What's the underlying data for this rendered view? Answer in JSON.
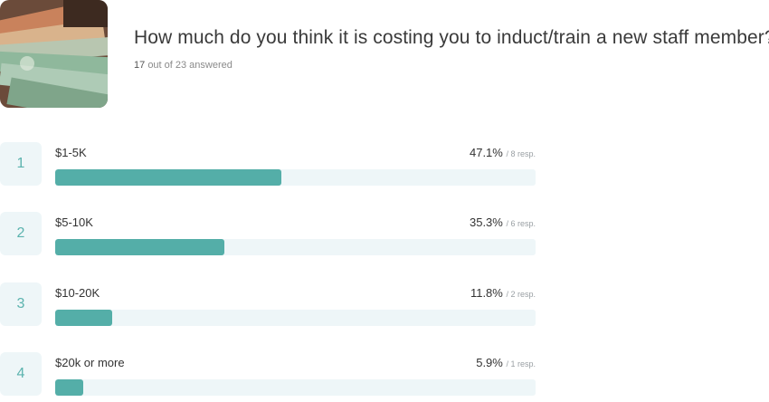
{
  "header": {
    "question": "How much do you think it is costing you to induct/train a new staff member?",
    "answered_count": "17",
    "answered_rest": "out of 23 answered",
    "thumbnail_icon": "money-banknotes-image"
  },
  "colors": {
    "bar_fill": "#54aea8",
    "bar_track": "#eef6f8",
    "rank_text": "#5bb3ae"
  },
  "options": [
    {
      "rank": "1",
      "label": "$1-5K",
      "percent": "47.1%",
      "resp": "/ 8 resp.",
      "value": 47.1
    },
    {
      "rank": "2",
      "label": "$5-10K",
      "percent": "35.3%",
      "resp": "/ 6 resp.",
      "value": 35.3
    },
    {
      "rank": "3",
      "label": "$10-20K",
      "percent": "11.8%",
      "resp": "/ 2 resp.",
      "value": 11.8
    },
    {
      "rank": "4",
      "label": "$20k or more",
      "percent": "5.9%",
      "resp": "/ 1 resp.",
      "value": 5.9
    }
  ]
}
